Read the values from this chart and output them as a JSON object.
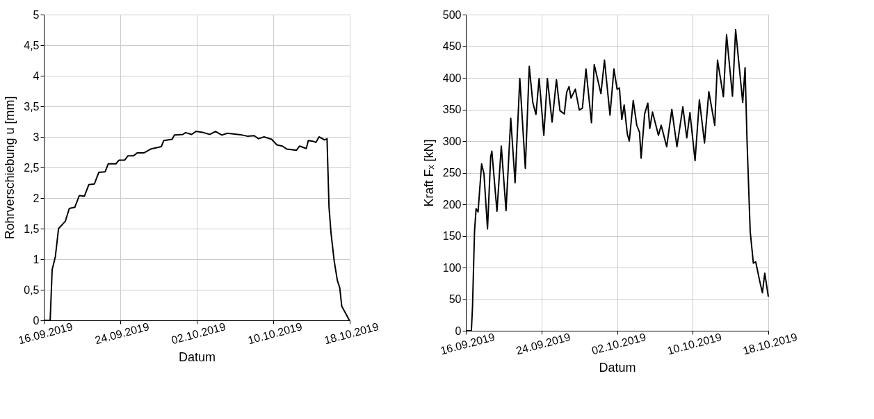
{
  "chart_data": [
    {
      "type": "line",
      "xlabel": "Datum",
      "ylabel": "Rohrverschiebung u [mm]",
      "grid": true,
      "xlim": [
        "2019-09-16T00:00",
        "2019-10-18T00:00"
      ],
      "xticks": [
        {
          "value": "2019-09-16T00:00",
          "label": "16.09.2019"
        },
        {
          "value": "2019-09-24T00:00",
          "label": "24.09.2019"
        },
        {
          "value": "2019-10-02T00:00",
          "label": "02.10.2019"
        },
        {
          "value": "2019-10-10T00:00",
          "label": "10.10.2019"
        },
        {
          "value": "2019-10-18T00:00",
          "label": "18.10.2019"
        }
      ],
      "ylim": [
        0,
        5
      ],
      "yticks": [
        0,
        {
          "value": 0.5,
          "label": "0,5"
        },
        1,
        {
          "value": 1.5,
          "label": "1,5"
        },
        2,
        {
          "value": 2.5,
          "label": "2,5"
        },
        3,
        {
          "value": 3.5,
          "label": "3,5"
        },
        4,
        {
          "value": 4.5,
          "label": "4,5"
        },
        5
      ],
      "series": [
        {
          "color": "#000000",
          "x": [
            "2019-09-16T00:00",
            "2019-09-16T16:00",
            "2019-09-16T21:00",
            "2019-09-17T05:00",
            "2019-09-17T13:00",
            "2019-09-18T06:00",
            "2019-09-18T16:00",
            "2019-09-19T06:00",
            "2019-09-19T17:00",
            "2019-09-20T06:00",
            "2019-09-20T17:00",
            "2019-09-21T07:00",
            "2019-09-21T18:00",
            "2019-09-22T10:00",
            "2019-09-22T18:00",
            "2019-09-23T13:00",
            "2019-09-23T21:00",
            "2019-09-24T11:00",
            "2019-09-24T19:00",
            "2019-09-25T09:00",
            "2019-09-25T19:00",
            "2019-09-26T12:00",
            "2019-09-27T04:00",
            "2019-09-28T07:00",
            "2019-09-28T13:00",
            "2019-09-29T10:00",
            "2019-09-29T16:00",
            "2019-09-30T13:00",
            "2019-09-30T20:00",
            "2019-10-01T11:00",
            "2019-10-01T22:00",
            "2019-10-02T17:00",
            "2019-10-03T09:00",
            "2019-10-03T23:00",
            "2019-10-04T15:00",
            "2019-10-05T05:00",
            "2019-10-06T18:00",
            "2019-10-07T08:00",
            "2019-10-08T00:00",
            "2019-10-08T11:00",
            "2019-10-09T01:00",
            "2019-10-09T20:00",
            "2019-10-10T09:00",
            "2019-10-10T23:00",
            "2019-10-11T10:00",
            "2019-10-12T10:00",
            "2019-10-12T18:00",
            "2019-10-13T11:00",
            "2019-10-13T16:00",
            "2019-10-14T03:00",
            "2019-10-14T11:00",
            "2019-10-14T19:00",
            "2019-10-15T09:00",
            "2019-10-15T15:00",
            "2019-10-15T20:00",
            "2019-10-16T01:00",
            "2019-10-16T09:00",
            "2019-10-16T17:00",
            "2019-10-16T23:00",
            "2019-10-17T04:00",
            "2019-10-17T15:00",
            "2019-10-17T23:00"
          ],
          "values": [
            0,
            0,
            0.83,
            1.04,
            1.5,
            1.62,
            1.83,
            1.85,
            2.04,
            2.03,
            2.22,
            2.23,
            2.42,
            2.43,
            2.56,
            2.56,
            2.62,
            2.62,
            2.69,
            2.69,
            2.74,
            2.74,
            2.8,
            2.84,
            2.94,
            2.96,
            3.03,
            3.04,
            3.07,
            3.04,
            3.09,
            3.07,
            3.04,
            3.09,
            3.03,
            3.06,
            3.03,
            3.01,
            3.02,
            2.97,
            3.0,
            2.96,
            2.87,
            2.85,
            2.8,
            2.78,
            2.85,
            2.81,
            2.94,
            2.93,
            2.91,
            3.0,
            2.95,
            2.97,
            1.85,
            1.43,
            0.97,
            0.65,
            0.53,
            0.23,
            0.1,
            0
          ]
        }
      ]
    },
    {
      "type": "line",
      "xlabel": "Datum",
      "ylabel": "Kraft Fₓ [kN]",
      "grid": true,
      "xlim": [
        "2019-09-16T00:00",
        "2019-10-18T00:00"
      ],
      "xticks": [
        {
          "value": "2019-09-16T00:00",
          "label": "16.09.2019"
        },
        {
          "value": "2019-09-24T00:00",
          "label": "24.09.2019"
        },
        {
          "value": "2019-10-02T00:00",
          "label": "02.10.2019"
        },
        {
          "value": "2019-10-10T00:00",
          "label": "10.10.2019"
        },
        {
          "value": "2019-10-18T00:00",
          "label": "18.10.2019"
        }
      ],
      "ylim": [
        0,
        500
      ],
      "yticks": [
        0,
        50,
        100,
        150,
        200,
        250,
        300,
        350,
        400,
        450,
        500
      ],
      "series": [
        {
          "color": "#000000",
          "x": [
            "2019-09-16T00:00",
            "2019-09-16T14:00",
            "2019-09-16T17:00",
            "2019-09-16T22:00",
            "2019-09-17T02:00",
            "2019-09-17T07:00",
            "2019-09-17T16:00",
            "2019-09-17T22:00",
            "2019-09-18T07:00",
            "2019-09-18T15:00",
            "2019-09-18T18:00",
            "2019-09-19T07:00",
            "2019-09-19T18:00",
            "2019-09-20T06:00",
            "2019-09-20T18:00",
            "2019-09-21T05:00",
            "2019-09-21T17:00",
            "2019-09-22T07:00",
            "2019-09-22T17:00",
            "2019-09-23T02:00",
            "2019-09-23T10:00",
            "2019-09-23T18:00",
            "2019-09-24T06:00",
            "2019-09-24T15:00",
            "2019-09-25T01:00",
            "2019-09-25T03:00",
            "2019-09-25T14:00",
            "2019-09-25T23:00",
            "2019-09-26T10:00",
            "2019-09-26T16:00",
            "2019-09-26T22:00",
            "2019-09-27T03:00",
            "2019-09-27T14:00",
            "2019-09-28T00:00",
            "2019-09-28T08:00",
            "2019-09-28T17:00",
            "2019-09-29T07:00",
            "2019-09-29T14:00",
            "2019-09-30T07:00",
            "2019-09-30T16:00",
            "2019-10-01T06:00",
            "2019-10-01T16:00",
            "2019-10-02T00:00",
            "2019-10-02T06:00",
            "2019-10-02T12:00",
            "2019-10-02T18:00",
            "2019-10-03T02:00",
            "2019-10-03T07:00",
            "2019-10-03T17:00",
            "2019-10-04T02:00",
            "2019-10-04T09:00",
            "2019-10-04T13:00",
            "2019-10-04T22:00",
            "2019-10-05T06:00",
            "2019-10-05T11:00",
            "2019-10-05T18:00",
            "2019-10-06T09:00",
            "2019-10-06T16:00",
            "2019-10-07T06:00",
            "2019-10-07T19:00",
            "2019-10-08T08:00",
            "2019-10-08T23:00",
            "2019-10-09T09:00",
            "2019-10-09T17:00",
            "2019-10-10T06:00",
            "2019-10-10T17:00",
            "2019-10-11T06:00",
            "2019-10-11T17:00",
            "2019-10-12T08:00",
            "2019-10-12T15:00",
            "2019-10-13T06:00",
            "2019-10-13T14:00",
            "2019-10-14T05:00",
            "2019-10-14T13:00",
            "2019-10-15T07:00",
            "2019-10-15T13:00",
            "2019-10-15T18:00",
            "2019-10-16T02:00",
            "2019-10-16T10:00",
            "2019-10-16T16:00",
            "2019-10-17T02:00",
            "2019-10-17T09:00",
            "2019-10-17T15:00",
            "2019-10-18T00:00"
          ],
          "values": [
            0,
            0,
            39,
            157,
            193,
            188,
            264,
            248,
            161,
            275,
            284,
            189,
            292,
            190,
            336,
            234,
            399,
            257,
            418,
            361,
            342,
            399,
            309,
            399,
            341,
            330,
            397,
            348,
            343,
            377,
            386,
            368,
            382,
            349,
            352,
            414,
            329,
            421,
            375,
            428,
            341,
            414,
            382,
            384,
            334,
            357,
            311,
            300,
            364,
            325,
            314,
            273,
            343,
            360,
            320,
            346,
            309,
            325,
            291,
            350,
            291,
            354,
            305,
            345,
            269,
            365,
            297,
            378,
            325,
            428,
            370,
            468,
            371,
            476,
            361,
            416,
            300,
            157,
            107,
            109,
            79,
            60,
            91,
            54
          ]
        }
      ]
    }
  ]
}
